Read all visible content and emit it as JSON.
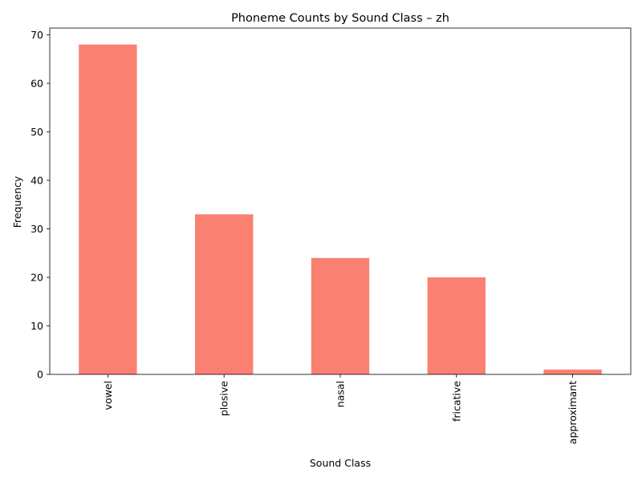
{
  "chart_data": {
    "type": "bar",
    "title": "Phoneme Counts by Sound Class – zh",
    "xlabel": "Sound Class",
    "ylabel": "Frequency",
    "categories": [
      "vowel",
      "plosive",
      "nasal",
      "fricative",
      "approximant"
    ],
    "values": [
      68,
      33,
      24,
      20,
      1
    ],
    "ylim": [
      0,
      71.4
    ],
    "yticks": [
      0,
      10,
      20,
      30,
      40,
      50,
      60,
      70
    ],
    "bar_color": "#FA8072",
    "grid": false,
    "legend": "none",
    "xtick_rotation": "vertical"
  }
}
